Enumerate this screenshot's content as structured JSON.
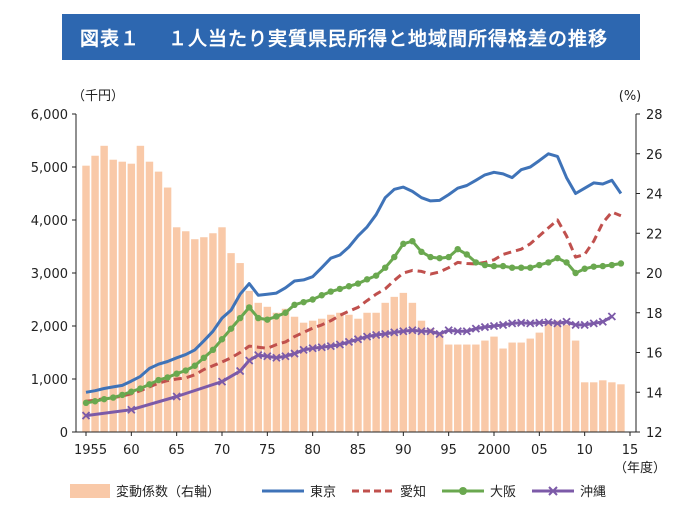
{
  "header": {
    "figure_label": "図表１",
    "title": "１人当たり実質県民所得と地域間所得格差の推移"
  },
  "chart_data": {
    "type": "bar+line",
    "left_unit": "（千円）",
    "right_unit": "(%)",
    "x_unit": "（年度）",
    "left_ticks": [
      "0",
      "1,000",
      "2,000",
      "3,000",
      "4,000",
      "5,000",
      "6,000"
    ],
    "right_ticks": [
      "12",
      "14",
      "16",
      "18",
      "20",
      "22",
      "24",
      "26",
      "28"
    ],
    "x_ticks": [
      {
        "year": 1955,
        "label": "1955"
      },
      {
        "year": 1960,
        "label": "60"
      },
      {
        "year": 1965,
        "label": "65"
      },
      {
        "year": 1970,
        "label": "70"
      },
      {
        "year": 1975,
        "label": "75"
      },
      {
        "year": 1980,
        "label": "80"
      },
      {
        "year": 1985,
        "label": "85"
      },
      {
        "year": 1990,
        "label": "90"
      },
      {
        "year": 1995,
        "label": "95"
      },
      {
        "year": 2000,
        "label": "2000"
      },
      {
        "year": 2005,
        "label": "05"
      },
      {
        "year": 2010,
        "label": "10"
      },
      {
        "year": 2015,
        "label": "15"
      }
    ],
    "left_range": [
      0,
      6000
    ],
    "right_range": [
      12,
      28
    ],
    "years": [
      1955,
      1956,
      1957,
      1958,
      1959,
      1960,
      1961,
      1962,
      1963,
      1964,
      1965,
      1966,
      1967,
      1968,
      1969,
      1970,
      1971,
      1972,
      1973,
      1974,
      1975,
      1976,
      1977,
      1978,
      1979,
      1980,
      1981,
      1982,
      1983,
      1984,
      1985,
      1986,
      1987,
      1988,
      1989,
      1990,
      1991,
      1992,
      1993,
      1994,
      1995,
      1996,
      1997,
      1998,
      1999,
      2000,
      2001,
      2002,
      2003,
      2004,
      2005,
      2006,
      2007,
      2008,
      2009,
      2010,
      2011,
      2012,
      2013,
      2014
    ],
    "bar_series": {
      "name": "変動係数（右軸）",
      "axis": "right",
      "color": "#f9c9a8",
      "values": [
        25.4,
        25.9,
        26.4,
        25.7,
        25.6,
        25.5,
        26.4,
        25.6,
        25.1,
        24.3,
        22.3,
        22.1,
        21.7,
        21.8,
        22.0,
        22.3,
        21.0,
        20.5,
        19.1,
        18.5,
        18.3,
        18.0,
        18.2,
        17.8,
        17.5,
        17.6,
        17.7,
        17.9,
        18.0,
        17.9,
        17.7,
        18.0,
        18.0,
        18.5,
        18.8,
        19.0,
        18.5,
        17.6,
        17.2,
        17.0,
        16.4,
        16.4,
        16.4,
        16.4,
        16.6,
        16.8,
        16.2,
        16.5,
        16.5,
        16.7,
        17.0,
        17.5,
        17.6,
        17.4,
        16.6,
        14.5,
        14.5,
        14.6,
        14.5,
        14.4
      ]
    },
    "line_series": [
      {
        "name": "東京",
        "color": "#3f73b8",
        "style": "solid",
        "marker": "none",
        "values": [
          750,
          780,
          820,
          850,
          880,
          960,
          1050,
          1200,
          1280,
          1330,
          1400,
          1460,
          1550,
          1720,
          1900,
          2150,
          2300,
          2600,
          2800,
          2580,
          2600,
          2620,
          2720,
          2850,
          2870,
          2930,
          3100,
          3280,
          3340,
          3490,
          3700,
          3870,
          4100,
          4420,
          4580,
          4620,
          4540,
          4420,
          4360,
          4370,
          4480,
          4600,
          4650,
          4750,
          4850,
          4900,
          4870,
          4800,
          4950,
          5000,
          5120,
          5250,
          5200,
          4800,
          4500,
          4600,
          4700,
          4680,
          4750,
          4500
        ]
      },
      {
        "name": "愛知",
        "color": "#c0504d",
        "style": "dashed",
        "marker": "none",
        "values": [
          580,
          600,
          630,
          650,
          680,
          720,
          780,
          850,
          920,
          970,
          1000,
          1020,
          1080,
          1180,
          1250,
          1320,
          1400,
          1500,
          1620,
          1600,
          1580,
          1650,
          1700,
          1800,
          1880,
          1960,
          2020,
          2100,
          2200,
          2280,
          2350,
          2480,
          2600,
          2700,
          2860,
          3000,
          3050,
          3030,
          2980,
          3020,
          3100,
          3200,
          3180,
          3170,
          3200,
          3250,
          3350,
          3400,
          3450,
          3550,
          3700,
          3850,
          4000,
          3700,
          3300,
          3350,
          3600,
          3950,
          4150,
          4080
        ]
      },
      {
        "name": "大阪",
        "color": "#6aa84f",
        "style": "solid",
        "marker": "circle",
        "values": [
          550,
          580,
          620,
          650,
          700,
          760,
          820,
          900,
          980,
          1030,
          1100,
          1160,
          1250,
          1400,
          1550,
          1750,
          1950,
          2150,
          2350,
          2150,
          2120,
          2180,
          2250,
          2400,
          2450,
          2500,
          2580,
          2650,
          2700,
          2750,
          2800,
          2880,
          2950,
          3100,
          3300,
          3550,
          3600,
          3400,
          3300,
          3280,
          3300,
          3450,
          3350,
          3200,
          3150,
          3130,
          3130,
          3100,
          3100,
          3100,
          3150,
          3200,
          3280,
          3200,
          3000,
          3080,
          3120,
          3130,
          3150,
          3180
        ]
      },
      {
        "name": "沖縄",
        "color": "#7c5aa8",
        "style": "solid",
        "marker": "x",
        "years": [
          1955,
          1960,
          1965,
          1970,
          1972,
          1973,
          1974,
          1975,
          1976,
          1977,
          1978,
          1979,
          1980,
          1981,
          1982,
          1983,
          1984,
          1985,
          1986,
          1987,
          1988,
          1989,
          1990,
          1991,
          1992,
          1993,
          1994,
          1995,
          1996,
          1997,
          1998,
          1999,
          2000,
          2001,
          2002,
          2003,
          2004,
          2005,
          2006,
          2007,
          2008,
          2009,
          2010,
          2011,
          2012,
          2013
        ],
        "values": [
          310,
          420,
          670,
          950,
          1150,
          1350,
          1450,
          1430,
          1400,
          1430,
          1480,
          1550,
          1580,
          1600,
          1620,
          1650,
          1700,
          1750,
          1800,
          1830,
          1850,
          1880,
          1900,
          1920,
          1900,
          1900,
          1850,
          1920,
          1900,
          1900,
          1950,
          1980,
          2000,
          2020,
          2050,
          2060,
          2050,
          2060,
          2070,
          2050,
          2080,
          2020,
          2020,
          2050,
          2080,
          2180
        ]
      }
    ],
    "legend": [
      "変動係数（右軸）",
      "東京",
      "愛知",
      "大阪",
      "沖縄"
    ],
    "legend_position": "bottom",
    "grid": false
  }
}
